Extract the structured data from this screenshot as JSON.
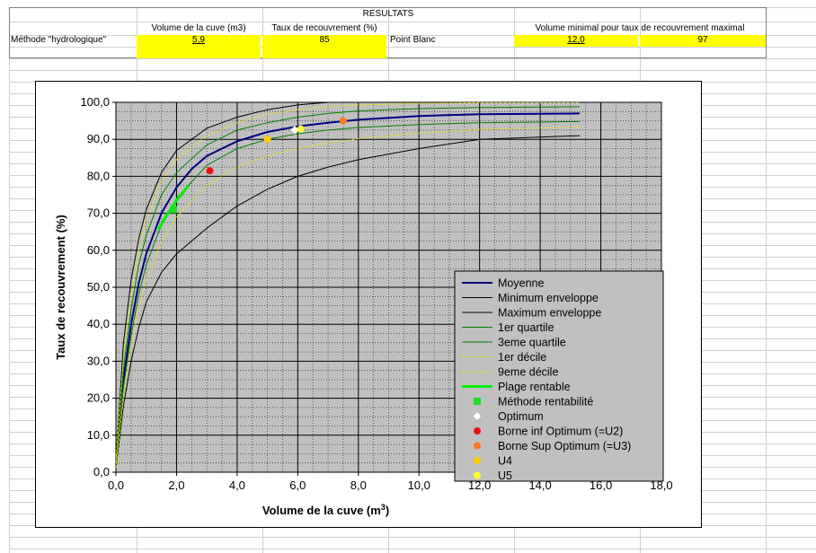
{
  "sheet": {
    "title": "RESULTATS",
    "headers": {
      "volume": "Volume de la cuve (m3)",
      "taux": "Taux de recouvrement (%)",
      "vol_min": "Volume minimal pour taux de recouvrement maximal"
    },
    "row": {
      "method": "Méthode \"hydrologique\"",
      "volume": "5,9",
      "taux": "85",
      "point": "Point Blanc",
      "vol_min": "12,0",
      "taux_max": "97"
    }
  },
  "colors": {
    "moyenne": "#000080",
    "envelope": "#000000",
    "quartile": "#008000",
    "decile": "#e6e600",
    "plage": "#00ee00",
    "rentabilite": "#22dd22",
    "optimum": "#ffffff",
    "u2": "#ee1111",
    "u3": "#ff7722",
    "u4": "#ffcc00",
    "u5": "#ffff33",
    "plot_bg": "#c0c0c0",
    "highlight": "#ffff00"
  },
  "chart_data": {
    "type": "line",
    "title": "",
    "xlabel": "Volume de la cuve (m",
    "xlabel_sup": "3",
    "xlabel_end": ")",
    "ylabel": "Taux de recouvrement (%)",
    "xlim": [
      0,
      18
    ],
    "ylim": [
      0,
      100
    ],
    "x_ticks": [
      "0,0",
      "2,0",
      "4,0",
      "6,0",
      "8,0",
      "10,0",
      "12,0",
      "14,0",
      "16,0",
      "18,0"
    ],
    "y_ticks": [
      "0,0",
      "10,0",
      "20,0",
      "30,0",
      "40,0",
      "50,0",
      "60,0",
      "70,0",
      "80,0",
      "90,0",
      "100,0"
    ],
    "grid": true,
    "legend_position": "bottom-right",
    "series": [
      {
        "name": "Moyenne",
        "kind": "line",
        "color_key": "moyenne",
        "width": 2,
        "x": [
          0,
          0.25,
          0.5,
          0.75,
          1,
          1.5,
          2,
          2.5,
          3,
          4,
          5,
          6,
          7,
          8,
          10,
          12,
          15.3
        ],
        "y": [
          2,
          25,
          40,
          51,
          59,
          70,
          77,
          82,
          85.5,
          89.5,
          92,
          93.5,
          94.5,
          95.3,
          96.3,
          96.8,
          97
        ]
      },
      {
        "name": "Minimum enveloppe",
        "kind": "line",
        "color_key": "envelope",
        "width": 1,
        "x": [
          0,
          0.25,
          0.5,
          0.75,
          1,
          1.5,
          2,
          3,
          4,
          5,
          6,
          7,
          8,
          10,
          12,
          15.3
        ],
        "y": [
          1,
          18,
          30,
          39,
          46,
          54,
          59,
          66,
          72,
          76.5,
          80,
          82.5,
          84.5,
          87.5,
          90,
          91
        ]
      },
      {
        "name": "Maximum enveloppe",
        "kind": "line",
        "color_key": "envelope",
        "width": 1,
        "x": [
          0,
          0.25,
          0.5,
          0.75,
          1,
          1.5,
          2,
          3,
          4,
          5,
          6,
          7,
          8,
          12,
          15.3
        ],
        "y": [
          3,
          35,
          52,
          63,
          71,
          81,
          87,
          93,
          96,
          98,
          99.3,
          100,
          100,
          100,
          100
        ]
      },
      {
        "name": "1er quartile",
        "kind": "line",
        "color_key": "quartile",
        "width": 1,
        "x": [
          0,
          0.25,
          0.5,
          0.75,
          1,
          1.5,
          2,
          3,
          4,
          5,
          6,
          7,
          8,
          10,
          12,
          15.3
        ],
        "y": [
          1.5,
          23,
          37,
          48,
          56,
          67,
          74,
          83,
          87.5,
          90,
          91.5,
          92.5,
          93.2,
          94,
          94.5,
          94.8
        ]
      },
      {
        "name": "3eme quartile",
        "kind": "line",
        "color_key": "quartile",
        "width": 1,
        "x": [
          0,
          0.25,
          0.5,
          0.75,
          1,
          1.5,
          2,
          3,
          4,
          5,
          6,
          7,
          8,
          10,
          12,
          15.3
        ],
        "y": [
          2.5,
          28,
          44,
          56,
          64,
          75,
          81,
          88.5,
          92.5,
          94.5,
          96,
          97,
          97.7,
          98.3,
          98.6,
          98.8
        ]
      },
      {
        "name": "1er décile",
        "kind": "line",
        "color_key": "decile",
        "width": 1,
        "dash": "3,2",
        "x": [
          0,
          0.25,
          0.5,
          0.75,
          1,
          1.5,
          2,
          3,
          4,
          5,
          6,
          7,
          8,
          10,
          12,
          15.3
        ],
        "y": [
          1.2,
          21,
          34,
          44,
          52,
          62,
          69,
          77.5,
          82.5,
          85.5,
          87.5,
          89,
          90.2,
          91.7,
          92.7,
          93.3
        ]
      },
      {
        "name": "9eme décile",
        "kind": "line",
        "color_key": "decile",
        "width": 1,
        "dash": "3,2",
        "x": [
          0,
          0.25,
          0.5,
          0.75,
          1,
          1.5,
          2,
          3,
          4,
          5,
          6,
          7,
          8,
          10,
          12,
          15.3
        ],
        "y": [
          3,
          31,
          48,
          60,
          68,
          78.5,
          84.5,
          91,
          94.5,
          96.8,
          98,
          98.8,
          99.3,
          99.7,
          99.9,
          100
        ]
      },
      {
        "name": "Plage rentable",
        "kind": "line",
        "color_key": "plage",
        "width": 3,
        "x": [
          1.4,
          1.6,
          1.8,
          2.0,
          2.2,
          2.4
        ],
        "y": [
          65.5,
          68.5,
          71,
          73.5,
          75.5,
          77.5
        ]
      },
      {
        "name": "Méthode rentabilité",
        "kind": "marker",
        "shape": "square",
        "color_key": "rentabilite",
        "x": [
          1.9
        ],
        "y": [
          71
        ]
      },
      {
        "name": "Optimum",
        "kind": "marker",
        "shape": "diamond",
        "color_key": "optimum",
        "x": [
          5.9
        ],
        "y": [
          92.5
        ]
      },
      {
        "name": "Borne inf Optimum (=U2)",
        "kind": "marker",
        "shape": "circle",
        "color_key": "u2",
        "x": [
          3.1
        ],
        "y": [
          81.5
        ]
      },
      {
        "name": "Borne Sup Optimum (=U3)",
        "kind": "marker",
        "shape": "circle",
        "color_key": "u3",
        "x": [
          7.5
        ],
        "y": [
          95
        ]
      },
      {
        "name": "U4",
        "kind": "marker",
        "shape": "circle",
        "color_key": "u4",
        "x": [
          5.0
        ],
        "y": [
          90
        ]
      },
      {
        "name": "U5",
        "kind": "marker",
        "shape": "circle",
        "color_key": "u5",
        "x": [
          6.1
        ],
        "y": [
          92.8
        ]
      }
    ]
  }
}
